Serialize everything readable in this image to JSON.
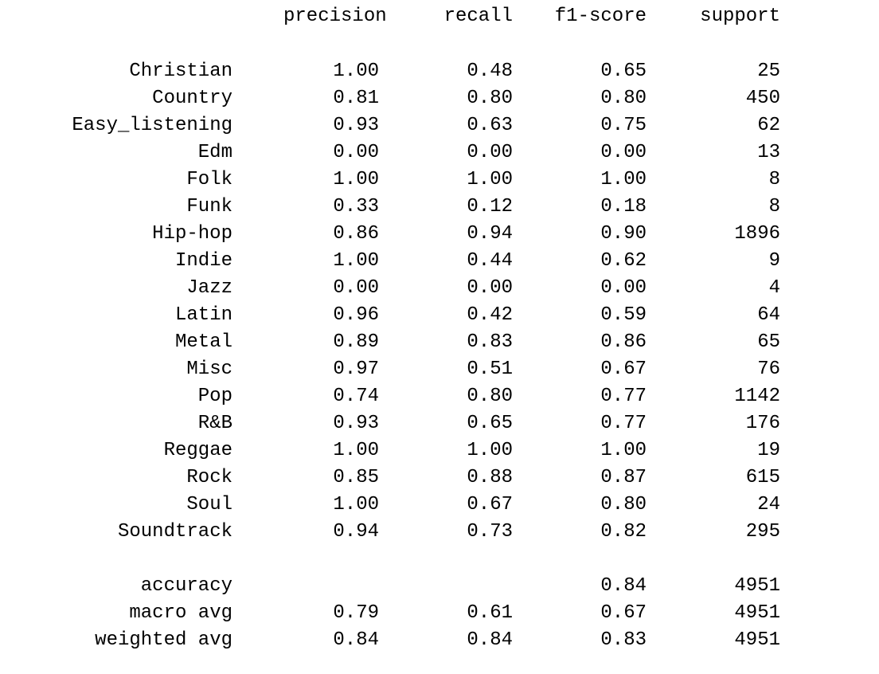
{
  "headers": {
    "precision": "precision",
    "recall": "recall",
    "f1": "f1-score",
    "support": "support"
  },
  "rows": [
    {
      "label": "Christian",
      "precision": "1.00",
      "recall": "0.48",
      "f1": "0.65",
      "support": "25"
    },
    {
      "label": "Country",
      "precision": "0.81",
      "recall": "0.80",
      "f1": "0.80",
      "support": "450"
    },
    {
      "label": "Easy_listening",
      "precision": "0.93",
      "recall": "0.63",
      "f1": "0.75",
      "support": "62"
    },
    {
      "label": "Edm",
      "precision": "0.00",
      "recall": "0.00",
      "f1": "0.00",
      "support": "13"
    },
    {
      "label": "Folk",
      "precision": "1.00",
      "recall": "1.00",
      "f1": "1.00",
      "support": "8"
    },
    {
      "label": "Funk",
      "precision": "0.33",
      "recall": "0.12",
      "f1": "0.18",
      "support": "8"
    },
    {
      "label": "Hip-hop",
      "precision": "0.86",
      "recall": "0.94",
      "f1": "0.90",
      "support": "1896"
    },
    {
      "label": "Indie",
      "precision": "1.00",
      "recall": "0.44",
      "f1": "0.62",
      "support": "9"
    },
    {
      "label": "Jazz",
      "precision": "0.00",
      "recall": "0.00",
      "f1": "0.00",
      "support": "4"
    },
    {
      "label": "Latin",
      "precision": "0.96",
      "recall": "0.42",
      "f1": "0.59",
      "support": "64"
    },
    {
      "label": "Metal",
      "precision": "0.89",
      "recall": "0.83",
      "f1": "0.86",
      "support": "65"
    },
    {
      "label": "Misc",
      "precision": "0.97",
      "recall": "0.51",
      "f1": "0.67",
      "support": "76"
    },
    {
      "label": "Pop",
      "precision": "0.74",
      "recall": "0.80",
      "f1": "0.77",
      "support": "1142"
    },
    {
      "label": "R&B",
      "precision": "0.93",
      "recall": "0.65",
      "f1": "0.77",
      "support": "176"
    },
    {
      "label": "Reggae",
      "precision": "1.00",
      "recall": "1.00",
      "f1": "1.00",
      "support": "19"
    },
    {
      "label": "Rock",
      "precision": "0.85",
      "recall": "0.88",
      "f1": "0.87",
      "support": "615"
    },
    {
      "label": "Soul",
      "precision": "1.00",
      "recall": "0.67",
      "f1": "0.80",
      "support": "24"
    },
    {
      "label": "Soundtrack",
      "precision": "0.94",
      "recall": "0.73",
      "f1": "0.82",
      "support": "295"
    }
  ],
  "summary": [
    {
      "label": "accuracy",
      "precision": "",
      "recall": "",
      "f1": "0.84",
      "support": "4951"
    },
    {
      "label": "macro avg",
      "precision": "0.79",
      "recall": "0.61",
      "f1": "0.67",
      "support": "4951"
    },
    {
      "label": "weighted avg",
      "precision": "0.84",
      "recall": "0.84",
      "f1": "0.83",
      "support": "4951"
    }
  ]
}
